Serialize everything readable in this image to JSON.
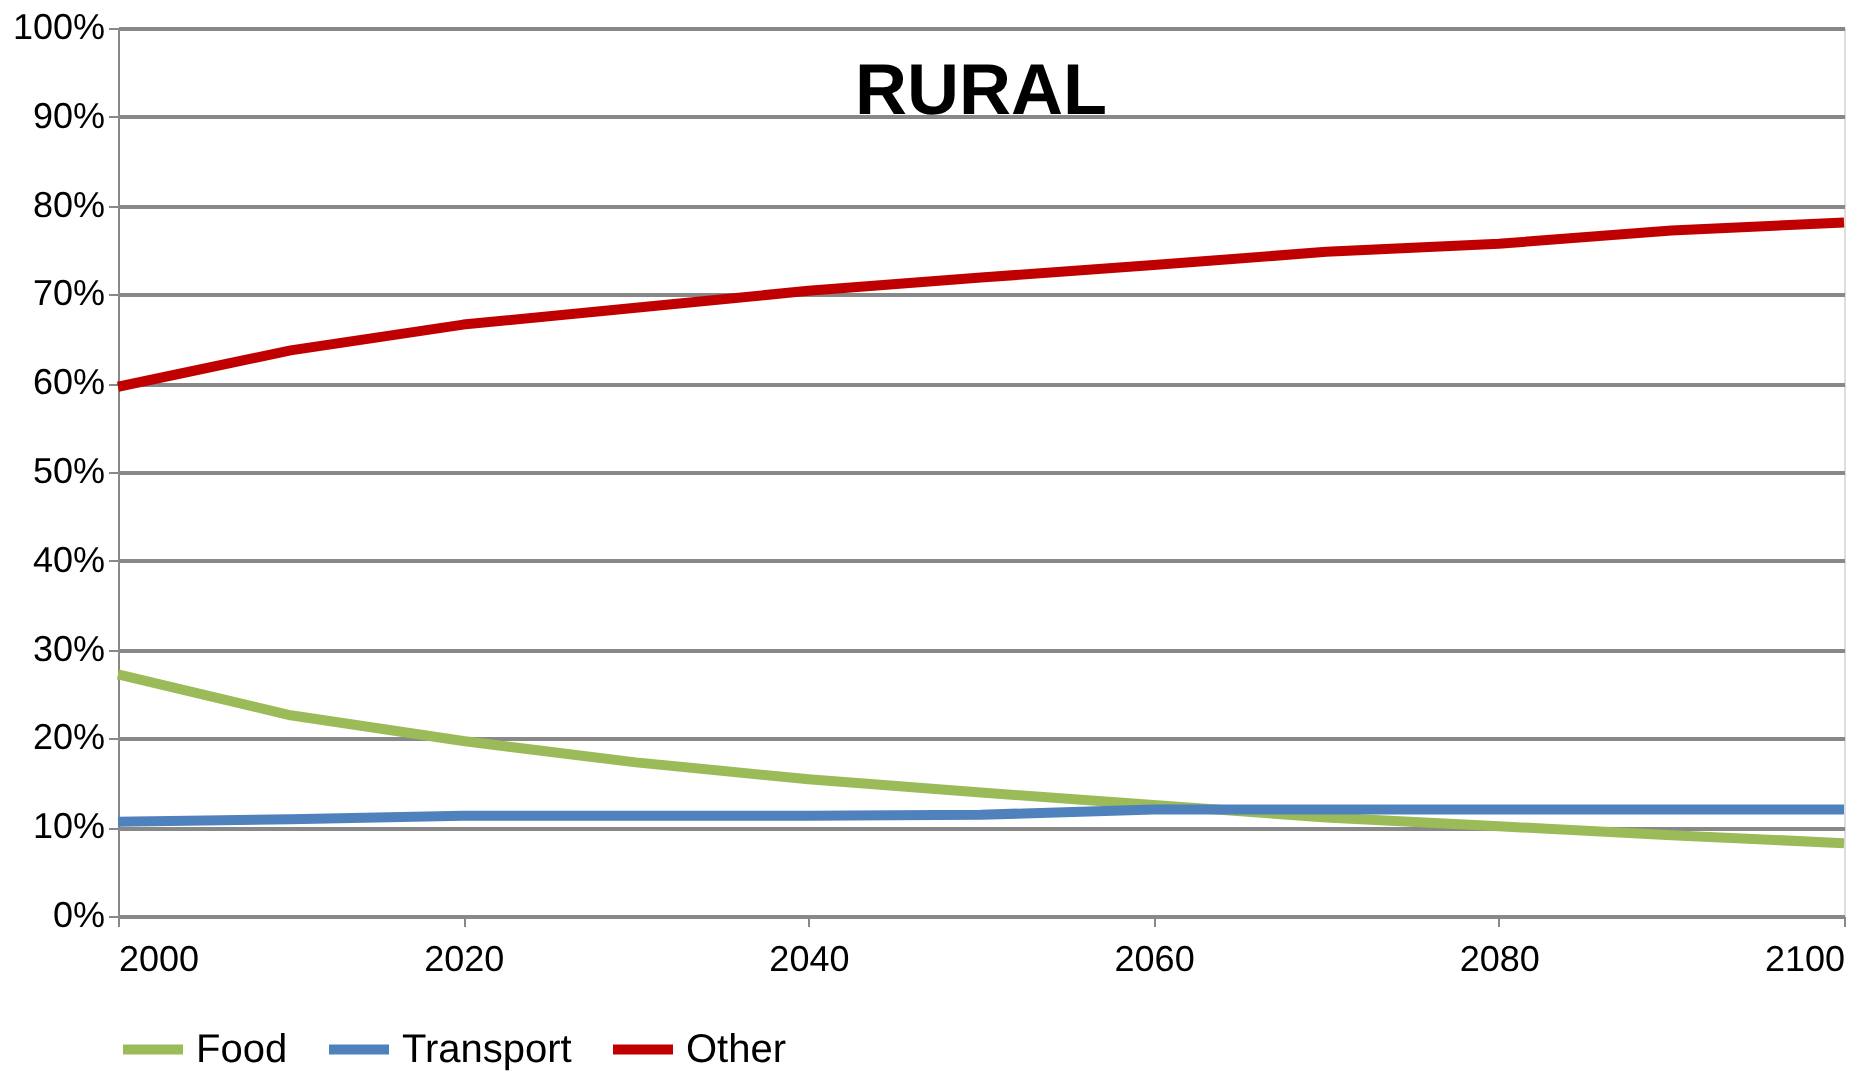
{
  "chart_data": {
    "type": "line",
    "title": "RURAL",
    "x": [
      2000,
      2010,
      2020,
      2030,
      2040,
      2050,
      2060,
      2070,
      2080,
      2090,
      2100
    ],
    "series": [
      {
        "name": "Food",
        "color": "#9bbb59",
        "values": [
          27.2,
          22.6,
          19.7,
          17.3,
          15.4,
          13.9,
          12.5,
          11.1,
          10.1,
          9.1,
          8.2
        ]
      },
      {
        "name": "Transport",
        "color": "#4f81bd",
        "values": [
          10.6,
          10.9,
          11.3,
          11.3,
          11.3,
          11.4,
          12.0,
          12.0,
          12.0,
          12.0,
          12.0
        ]
      },
      {
        "name": "Other",
        "color": "#c00000",
        "values": [
          59.6,
          63.7,
          66.6,
          68.5,
          70.4,
          71.9,
          73.3,
          74.8,
          75.7,
          77.2,
          78.1
        ]
      }
    ],
    "xlim": [
      2000,
      2100
    ],
    "xticks": [
      2000,
      2020,
      2040,
      2060,
      2080,
      2100
    ],
    "ylim": [
      0,
      100
    ],
    "yticks": [
      {
        "value": 0,
        "label": "0%"
      },
      {
        "value": 10,
        "label": "10%"
      },
      {
        "value": 20,
        "label": "20%"
      },
      {
        "value": 30,
        "label": "30%"
      },
      {
        "value": 40,
        "label": "40%"
      },
      {
        "value": 50,
        "label": "50%"
      },
      {
        "value": 60,
        "label": "60%"
      },
      {
        "value": 70,
        "label": "70%"
      },
      {
        "value": 80,
        "label": "80%"
      },
      {
        "value": 90,
        "label": "90%"
      },
      {
        "value": 100,
        "label": "100%"
      }
    ],
    "grid": "y",
    "legend": "bottom",
    "line_style": "solid"
  }
}
